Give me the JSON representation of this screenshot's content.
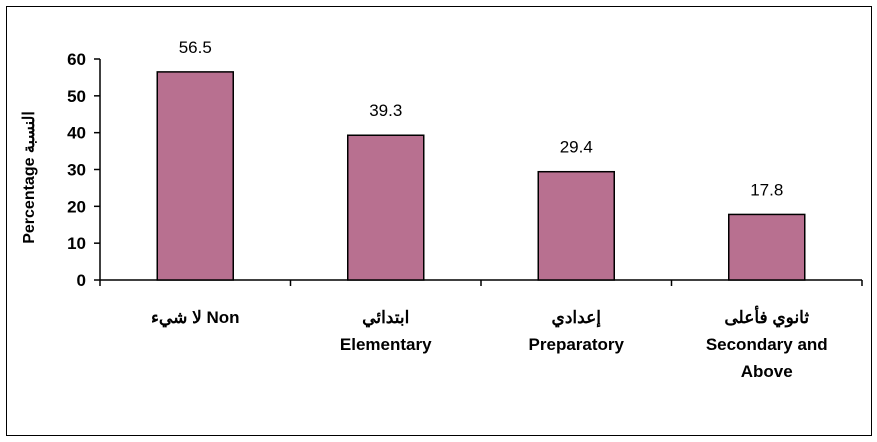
{
  "chart_data": {
    "type": "bar",
    "categories": [
      [
        "لا شيء  Non"
      ],
      [
        "ابتدائي",
        "Elementary"
      ],
      [
        "إعدادي",
        "Preparatory"
      ],
      [
        "ثانوي فأعلى",
        "Secondary and",
        "Above"
      ]
    ],
    "values": [
      56.5,
      39.3,
      29.4,
      17.8
    ],
    "value_labels": [
      "56.5",
      "39.3",
      "29.4",
      "17.8"
    ],
    "ylabel": "Percentage النسبة",
    "ylim": [
      0,
      60
    ],
    "yticks": [
      0,
      10,
      20,
      30,
      40,
      50,
      60
    ],
    "bar_color": "#b87090",
    "grid": false,
    "legend": "none"
  }
}
